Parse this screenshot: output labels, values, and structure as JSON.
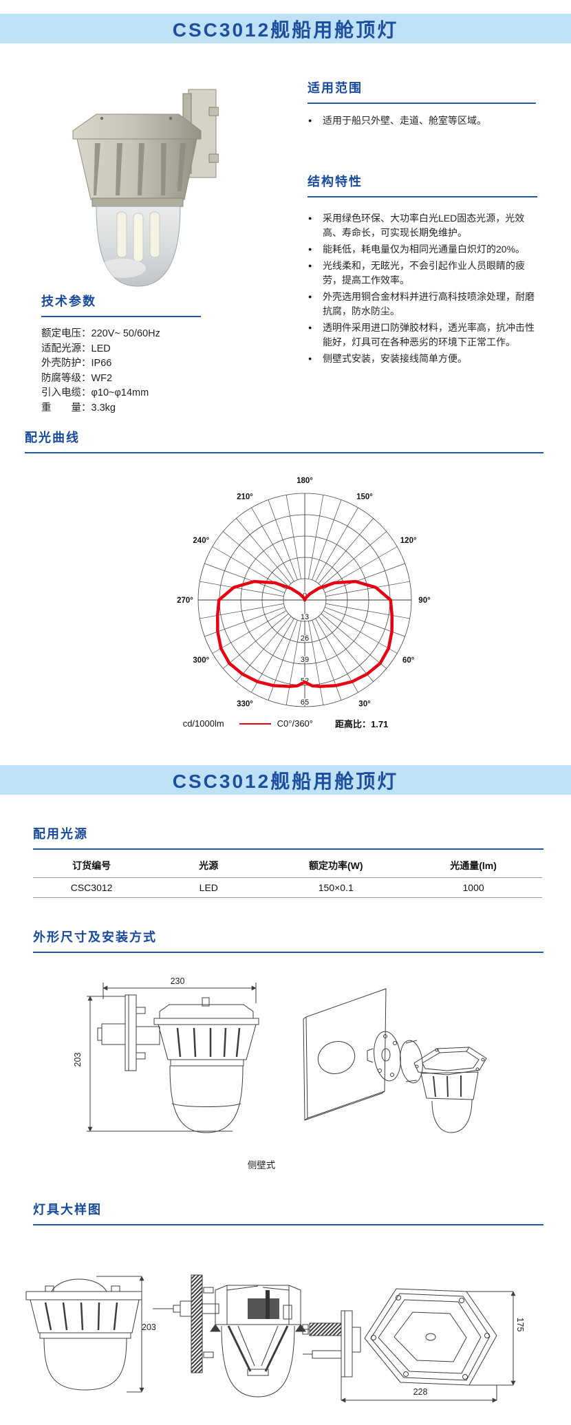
{
  "header": {
    "title": "CSC3012舰船用舱顶灯"
  },
  "header2": {
    "title": "CSC3012舰船用舱顶灯"
  },
  "colors": {
    "accent": "#17499c",
    "band_bg": "#bfe1f5",
    "band_text": "#1d4f9e",
    "curve_red": "#e60012"
  },
  "scope": {
    "title": "适用范围",
    "bullets": [
      "适用于船只外壁、走道、舱室等区域。"
    ]
  },
  "features": {
    "title": "结构特性",
    "bullets": [
      "采用绿色环保、大功率白光LED固态光源，光效高、寿命长，可实现长期免维护。",
      "能耗低，耗电量仅为相同光通量白炽灯的20%。",
      "光线柔和，无眩光，不会引起作业人员眼睛的疲劳，提高工作效率。",
      "外壳选用铜合金材料并进行高科技喷涂处理，耐磨抗腐，防水防尘。",
      "透明件采用进口防弹胶材料，透光率高，抗冲击性能好，灯具可在各种恶劣的环境下正常工作。",
      "侧壁式安装，安装接线简单方便。"
    ]
  },
  "tech": {
    "title": "技术参数",
    "params": [
      {
        "label": "额定电压：",
        "value": "220V~ 50/60Hz"
      },
      {
        "label": "适配光源：",
        "value": "LED"
      },
      {
        "label": "外壳防护：",
        "value": "IP66"
      },
      {
        "label": "防腐等级：",
        "value": "WF2"
      },
      {
        "label": "引入电缆：",
        "value": "φ10~φ14mm"
      },
      {
        "label": "重　　量：",
        "value": "3.3kg"
      }
    ]
  },
  "curve_section": {
    "title": "配光曲线"
  },
  "chart_data": {
    "type": "line",
    "variant": "polar-photometric",
    "title": "配光曲线",
    "units_label": "cd/1000lm",
    "ratio_label": "距高比：1.71",
    "legend_position": "bottom",
    "radial_ticks": [
      0,
      13,
      26,
      39,
      52,
      65
    ],
    "radial_max": 65,
    "angle_labels": [
      {
        "text": "180°",
        "dir": 180
      },
      {
        "text": "150°",
        "dir": 150
      },
      {
        "text": "120°",
        "dir": 120
      },
      {
        "text": "90°",
        "dir": 90
      },
      {
        "text": "60°",
        "dir": 60
      },
      {
        "text": "30°",
        "dir": 30
      },
      {
        "text": "210°",
        "dir": -150
      },
      {
        "text": "240°",
        "dir": -120
      },
      {
        "text": "270°",
        "dir": -90
      },
      {
        "text": "300°",
        "dir": -60
      },
      {
        "text": "330°",
        "dir": -30
      }
    ],
    "series": [
      {
        "name": "C0°/360°",
        "color": "#e60012",
        "symmetric": true,
        "angles_deg": [
          0,
          5,
          10,
          20,
          30,
          40,
          50,
          60,
          70,
          80,
          90,
          100,
          110,
          120,
          130,
          140,
          150,
          160,
          170,
          180
        ],
        "values": [
          50,
          52.5,
          53.5,
          55.5,
          57.5,
          59,
          60,
          59,
          56.5,
          54,
          52.3,
          44,
          33,
          21,
          11,
          5,
          2,
          1,
          0.5,
          0
        ]
      }
    ]
  },
  "source_table": {
    "title": "配用光源",
    "headers": [
      "订货编号",
      "光源",
      "额定功率(W)",
      "光通量(lm)"
    ],
    "rows": [
      [
        "CSC3012",
        "LED",
        "150×0.1",
        "1000"
      ]
    ]
  },
  "outline": {
    "title": "外形尺寸及安装方式",
    "width_mm": "230",
    "height_mm": "203",
    "caption": "侧壁式"
  },
  "detail": {
    "title": "灯具大样图",
    "front_height_mm": "203",
    "hex_height_mm": "175",
    "hex_width_mm": "228"
  }
}
